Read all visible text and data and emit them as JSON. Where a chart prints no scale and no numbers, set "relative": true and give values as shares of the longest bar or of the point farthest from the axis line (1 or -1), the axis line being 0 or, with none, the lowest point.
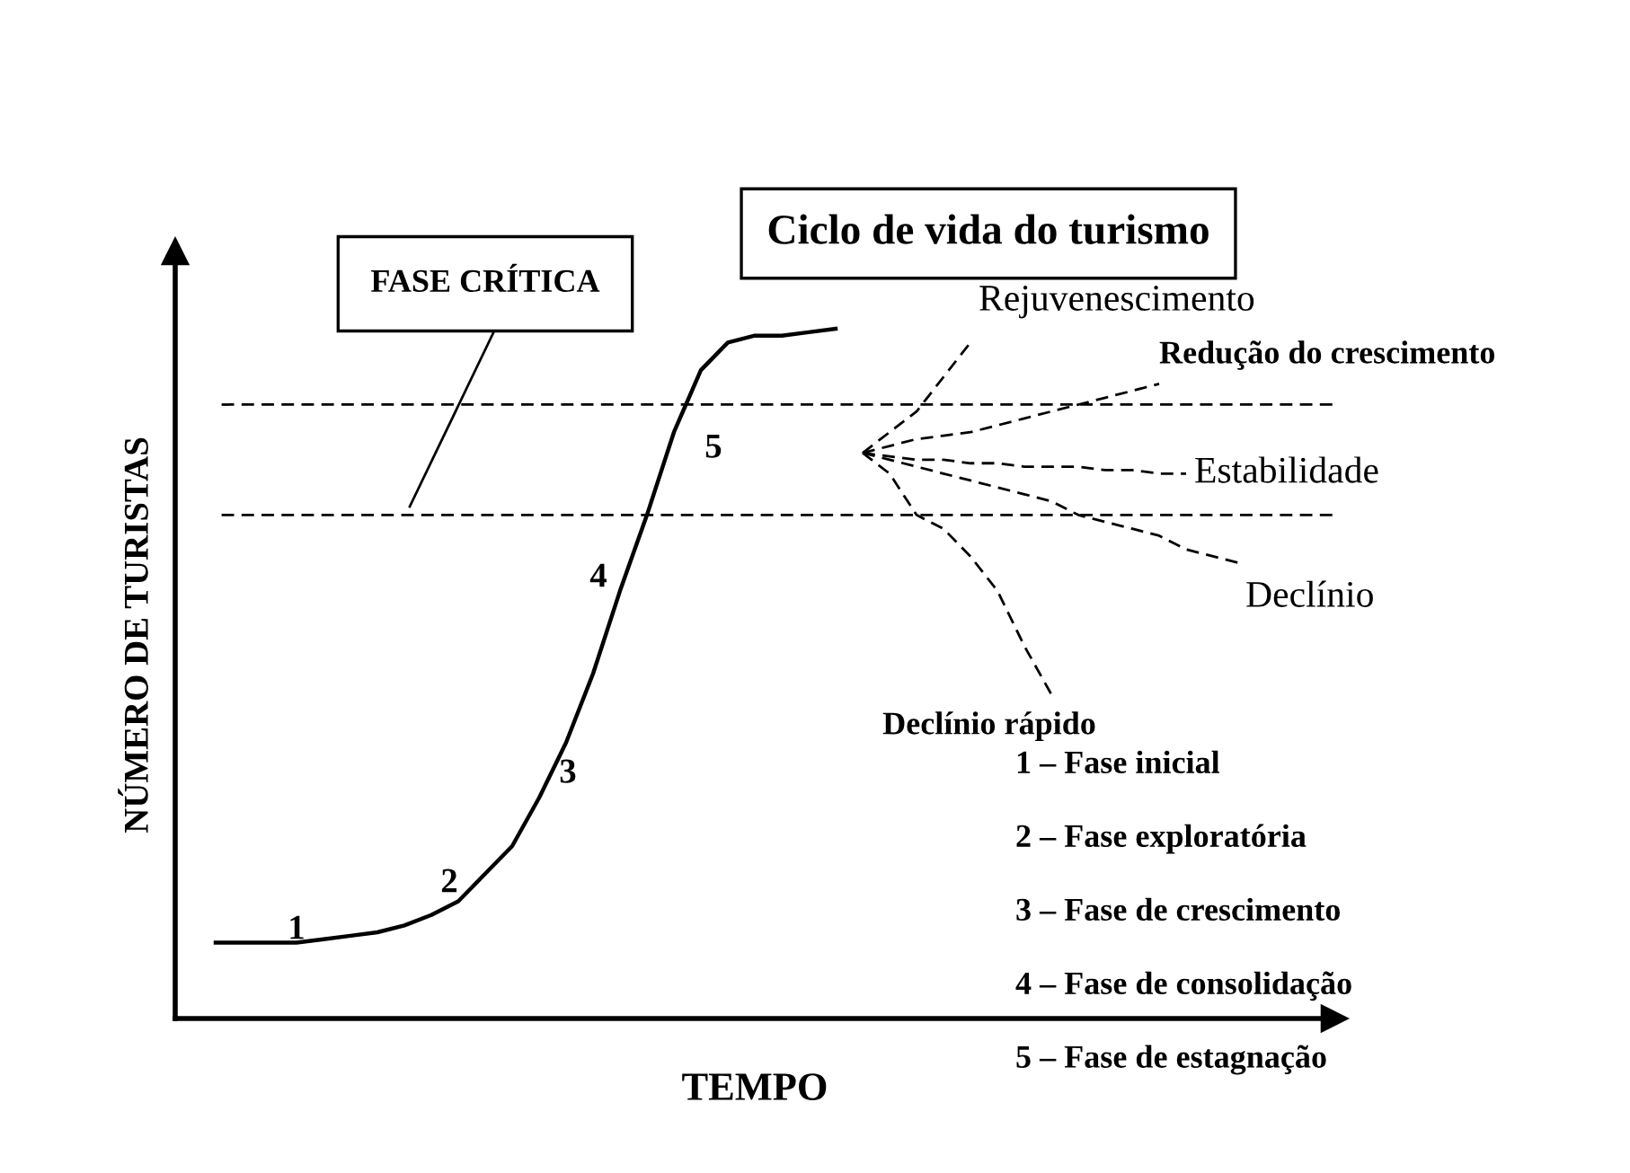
{
  "chart_data": {
    "type": "line",
    "relative": true,
    "title": "Ciclo de vida do turismo",
    "xlabel": "TEMPO",
    "ylabel": "NÚMERO DE TURISTAS",
    "categories": [
      null,
      null,
      null,
      null,
      null,
      null,
      null,
      null,
      null,
      null,
      null,
      null,
      null,
      null,
      null,
      null,
      null,
      null,
      null,
      null,
      null,
      null,
      null,
      null,
      null,
      null,
      null,
      null,
      null,
      null,
      null,
      null,
      null,
      null,
      null,
      null,
      null,
      null,
      null,
      null,
      null,
      null,
      null
    ],
    "series": [
      {
        "color": "#000000",
        "line_style": "solid",
        "values": [
          null,
          0.11,
          0.11,
          0.11,
          0.11,
          0.115,
          0.12,
          0.125,
          0.135,
          0.15,
          0.17,
          0.21,
          0.25,
          0.32,
          0.4,
          0.5,
          0.62,
          0.73,
          0.85,
          0.94,
          0.98,
          0.99,
          0.99,
          0.995,
          1.0,
          null,
          null,
          null,
          null,
          null,
          null,
          null,
          null,
          null,
          null,
          null,
          null,
          null,
          null,
          null,
          null,
          null,
          null
        ]
      },
      {
        "name": "Rejuvenescimento",
        "color": "#000000",
        "line_style": "dashed",
        "values": [
          null,
          null,
          null,
          null,
          null,
          null,
          null,
          null,
          null,
          null,
          null,
          null,
          null,
          null,
          null,
          null,
          null,
          null,
          null,
          null,
          null,
          null,
          null,
          null,
          null,
          0.82,
          0.85,
          0.88,
          0.93,
          0.98,
          null,
          null,
          null,
          null,
          null,
          null,
          null,
          null,
          null,
          null,
          null,
          null,
          null
        ]
      },
      {
        "name": "Redução do crescimento",
        "color": "#000000",
        "line_style": "dashed",
        "values": [
          null,
          null,
          null,
          null,
          null,
          null,
          null,
          null,
          null,
          null,
          null,
          null,
          null,
          null,
          null,
          null,
          null,
          null,
          null,
          null,
          null,
          null,
          null,
          null,
          null,
          0.82,
          0.83,
          0.84,
          0.845,
          0.85,
          0.86,
          0.87,
          0.88,
          0.89,
          0.9,
          0.91,
          0.92,
          null,
          null,
          null,
          null,
          null,
          null
        ]
      },
      {
        "name": "Estabilidade",
        "color": "#000000",
        "line_style": "dashed",
        "values": [
          null,
          null,
          null,
          null,
          null,
          null,
          null,
          null,
          null,
          null,
          null,
          null,
          null,
          null,
          null,
          null,
          null,
          null,
          null,
          null,
          null,
          null,
          null,
          null,
          null,
          0.82,
          0.815,
          0.81,
          0.81,
          0.805,
          0.805,
          0.8,
          0.8,
          0.8,
          0.795,
          0.795,
          0.79,
          0.79,
          null,
          null,
          null,
          null,
          null
        ]
      },
      {
        "name": "Declínio",
        "color": "#000000",
        "line_style": "dashed",
        "values": [
          null,
          null,
          null,
          null,
          null,
          null,
          null,
          null,
          null,
          null,
          null,
          null,
          null,
          null,
          null,
          null,
          null,
          null,
          null,
          null,
          null,
          null,
          null,
          null,
          null,
          0.82,
          0.81,
          0.8,
          0.79,
          0.78,
          0.77,
          0.76,
          0.75,
          0.73,
          0.72,
          0.71,
          0.7,
          0.68,
          0.67,
          0.66,
          null,
          null,
          null
        ]
      },
      {
        "name": "Declínio rápido",
        "color": "#000000",
        "line_style": "dashed",
        "values": [
          null,
          null,
          null,
          null,
          null,
          null,
          null,
          null,
          null,
          null,
          null,
          null,
          null,
          null,
          null,
          null,
          null,
          null,
          null,
          null,
          null,
          null,
          null,
          null,
          null,
          0.82,
          0.79,
          0.73,
          0.71,
          0.67,
          0.62,
          0.54,
          0.47,
          null,
          null,
          null,
          null,
          null,
          null,
          null,
          null,
          null,
          null
        ]
      }
    ],
    "ref_lines": [
      {
        "axis": "y",
        "value": 0.89,
        "color": "#000000",
        "line_style": "dashed"
      },
      {
        "axis": "y",
        "value": 0.73,
        "color": "#000000",
        "line_style": "dashed"
      }
    ],
    "annotations": [
      "FASE CRÍTICA",
      "1",
      "2",
      "3",
      "4",
      "5",
      "1 – Fase inicial",
      "2 – Fase exploratória",
      "3 – Fase de crescimento",
      "4 – Fase de consolidação",
      "5 – Fase de estagnação"
    ]
  }
}
